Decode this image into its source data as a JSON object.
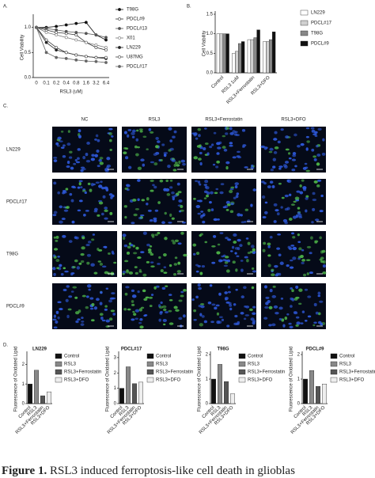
{
  "chart_data": [
    {
      "type": "line",
      "panel": "A.",
      "y_label": "Cell Viability",
      "x_label": "RSL3 (uM)",
      "categories": [
        "0",
        "0.1",
        "0.2",
        "0.4",
        "0.8",
        "1.6",
        "3.2",
        "6.4"
      ],
      "ylim": [
        0,
        1.2
      ],
      "yticks": [
        {
          "value": 0,
          "label": "0.0"
        },
        0.5,
        {
          "value": 1,
          "label": "1.0"
        }
      ],
      "series": [
        {
          "name": "T98G",
          "color": "#111111",
          "values": [
            1,
            1.0,
            1.02,
            1.05,
            1.08,
            1.1,
            0.85,
            0.75
          ]
        },
        {
          "name": "PDCL#9",
          "color": "#333333",
          "values": [
            1,
            0.95,
            0.9,
            0.88,
            0.85,
            0.7,
            0.6,
            0.55
          ]
        },
        {
          "name": "PDCL#13",
          "color": "#555555",
          "values": [
            1,
            0.98,
            0.95,
            0.92,
            0.9,
            0.88,
            0.85,
            0.8
          ]
        },
        {
          "name": "X01",
          "color": "#777777",
          "values": [
            1,
            0.9,
            0.85,
            0.8,
            0.75,
            0.7,
            0.65,
            0.6
          ]
        },
        {
          "name": "LN229",
          "color": "#222222",
          "values": [
            1,
            0.7,
            0.55,
            0.5,
            0.45,
            0.42,
            0.4,
            0.38
          ]
        },
        {
          "name": "U87MG",
          "color": "#444444",
          "values": [
            1,
            0.75,
            0.6,
            0.5,
            0.45,
            0.42,
            0.4,
            0.4
          ]
        },
        {
          "name": "PDCL#17",
          "color": "#666666",
          "values": [
            1,
            0.5,
            0.4,
            0.38,
            0.35,
            0.33,
            0.32,
            0.3
          ]
        }
      ]
    },
    {
      "type": "bar",
      "panel": "B.",
      "y_label": "Cell Viability",
      "categories": [
        "Control",
        "RSL3 1uM",
        "RSL3+Ferrostatin",
        "RSL3+DFO"
      ],
      "ylim": [
        0,
        1.5
      ],
      "yticks": [
        {
          "value": 0,
          "label": "0.0"
        },
        0.5,
        {
          "value": 1,
          "label": "1.0"
        },
        1.5
      ],
      "series": [
        {
          "name": "LN229",
          "color": "#ffffff",
          "values": [
            1,
            0.5,
            0.85,
            0.8
          ]
        },
        {
          "name": "PDCL#17",
          "color": "#d0d0d0",
          "values": [
            1,
            0.55,
            0.85,
            0.8
          ]
        },
        {
          "name": "T98G",
          "color": "#888888",
          "values": [
            1,
            0.75,
            0.9,
            0.85
          ]
        },
        {
          "name": "PDCL#9",
          "color": "#111111",
          "values": [
            1,
            0.8,
            1.1,
            1.05
          ]
        }
      ]
    },
    {
      "type": "bar",
      "panel": "D.",
      "title": "LN229",
      "y_label": "Fluorescence of Oxidated Lipid",
      "categories": [
        "Control",
        "RSL3",
        "RSL3+Ferrostatin",
        "RSL3+DFO"
      ],
      "values": [
        1,
        1.7,
        0.4,
        0.6
      ],
      "colors": [
        "#111111",
        "#888888",
        "#555555",
        "#eeeeee"
      ],
      "ylim": [
        0,
        2.5
      ],
      "yticks": [
        0,
        1,
        2
      ]
    },
    {
      "type": "bar",
      "title": "PDCL#17",
      "y_label": "Fluorescence of Oxidated Lipid",
      "categories": [
        "Control",
        "RSL3",
        "RSL3+Ferrostatin",
        "RSL3+DFO"
      ],
      "values": [
        1,
        2.4,
        1.3,
        1.4
      ],
      "colors": [
        "#111111",
        "#888888",
        "#555555",
        "#eeeeee"
      ],
      "ylim": [
        0,
        3.2
      ],
      "yticks": [
        0,
        1,
        2,
        3
      ]
    },
    {
      "type": "bar",
      "title": "T98G",
      "y_label": "Fluorescence of Oxidated Lipid",
      "categories": [
        "Control",
        "RSL3",
        "RSL3+Ferrostatin",
        "RSL3+DFO"
      ],
      "values": [
        1,
        1.6,
        0.9,
        0.4
      ],
      "colors": [
        "#111111",
        "#888888",
        "#555555",
        "#eeeeee"
      ],
      "ylim": [
        0,
        2
      ],
      "yticks": [
        0,
        1,
        2
      ]
    },
    {
      "type": "bar",
      "title": "PDCL#9",
      "y_label": "Fluorescence of Oxidated Lipid",
      "categories": [
        "Control",
        "RSL3",
        "RSL3+Ferrostatin",
        "RSL3+DFO"
      ],
      "values": [
        1,
        1.35,
        0.7,
        0.8
      ],
      "colors": [
        "#111111",
        "#888888",
        "#555555",
        "#eeeeee"
      ],
      "ylim": [
        0,
        2
      ],
      "yticks": [
        0,
        1,
        2
      ]
    }
  ],
  "microscopy": {
    "panel": "C.",
    "columns": [
      "NC",
      "RSL3",
      "RSL3+Ferrostatin",
      "RSL3+DFO"
    ],
    "rows": [
      "LN229",
      "PDCL#17",
      "T98G",
      "PDCL#9"
    ]
  },
  "caption": {
    "label": "Figure 1.",
    "text": "RSL3 induced ferroptosis-like cell death in glioblas"
  }
}
